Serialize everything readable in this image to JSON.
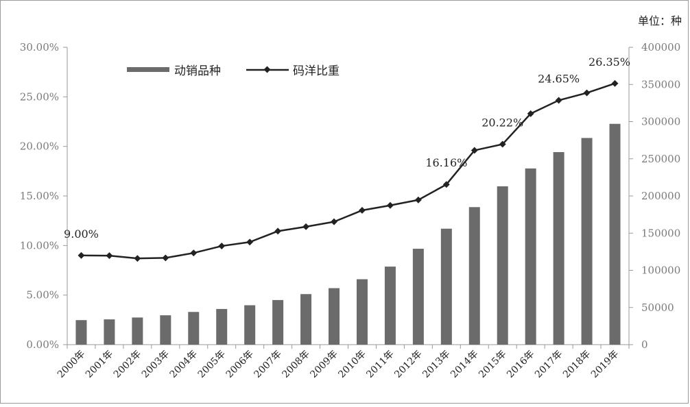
{
  "chart_data": {
    "type": "bar",
    "unit_label": "单位：种",
    "categories": [
      "2000年",
      "2001年",
      "2002年",
      "2003年",
      "2004年",
      "2005年",
      "2006年",
      "2007年",
      "2008年",
      "2009年",
      "2010年",
      "2011年",
      "2012年",
      "2013年",
      "2014年",
      "2015年",
      "2016年",
      "2017年",
      "2018年",
      "2019年"
    ],
    "series": [
      {
        "name": "动销品种",
        "type": "bar",
        "axis": "right",
        "values": [
          33000,
          34000,
          36500,
          39500,
          44000,
          48000,
          53000,
          60000,
          68000,
          76000,
          88000,
          105000,
          129000,
          156000,
          185000,
          213000,
          237000,
          259000,
          278000,
          297000
        ]
      },
      {
        "name": "码洋比重",
        "type": "line",
        "axis": "left",
        "values": [
          9.0,
          8.98,
          8.7,
          8.75,
          9.25,
          9.95,
          10.35,
          11.45,
          11.9,
          12.4,
          13.55,
          14.05,
          14.6,
          16.16,
          19.6,
          20.22,
          23.3,
          24.65,
          25.4,
          26.35
        ]
      }
    ],
    "annotations": [
      {
        "index": 0,
        "label": "9.00%"
      },
      {
        "index": 13,
        "label": "16.16%"
      },
      {
        "index": 15,
        "label": "20.22%"
      },
      {
        "index": 17,
        "label": "24.65%"
      },
      {
        "index": 19,
        "label": "26.35%"
      }
    ],
    "y_left": {
      "range": [
        0,
        30
      ],
      "ticks": [
        "0.00%",
        "5.00%",
        "10.00%",
        "15.00%",
        "20.00%",
        "25.00%",
        "30.00%"
      ]
    },
    "y_right": {
      "range": [
        0,
        400000
      ],
      "ticks": [
        "0",
        "50000",
        "100000",
        "150000",
        "200000",
        "250000",
        "300000",
        "350000",
        "400000"
      ]
    },
    "grid": false,
    "legend_position": "top-left",
    "colors": {
      "bar": "#6b6b6b",
      "line": "#222222",
      "axis": "#9a9a9a"
    }
  }
}
